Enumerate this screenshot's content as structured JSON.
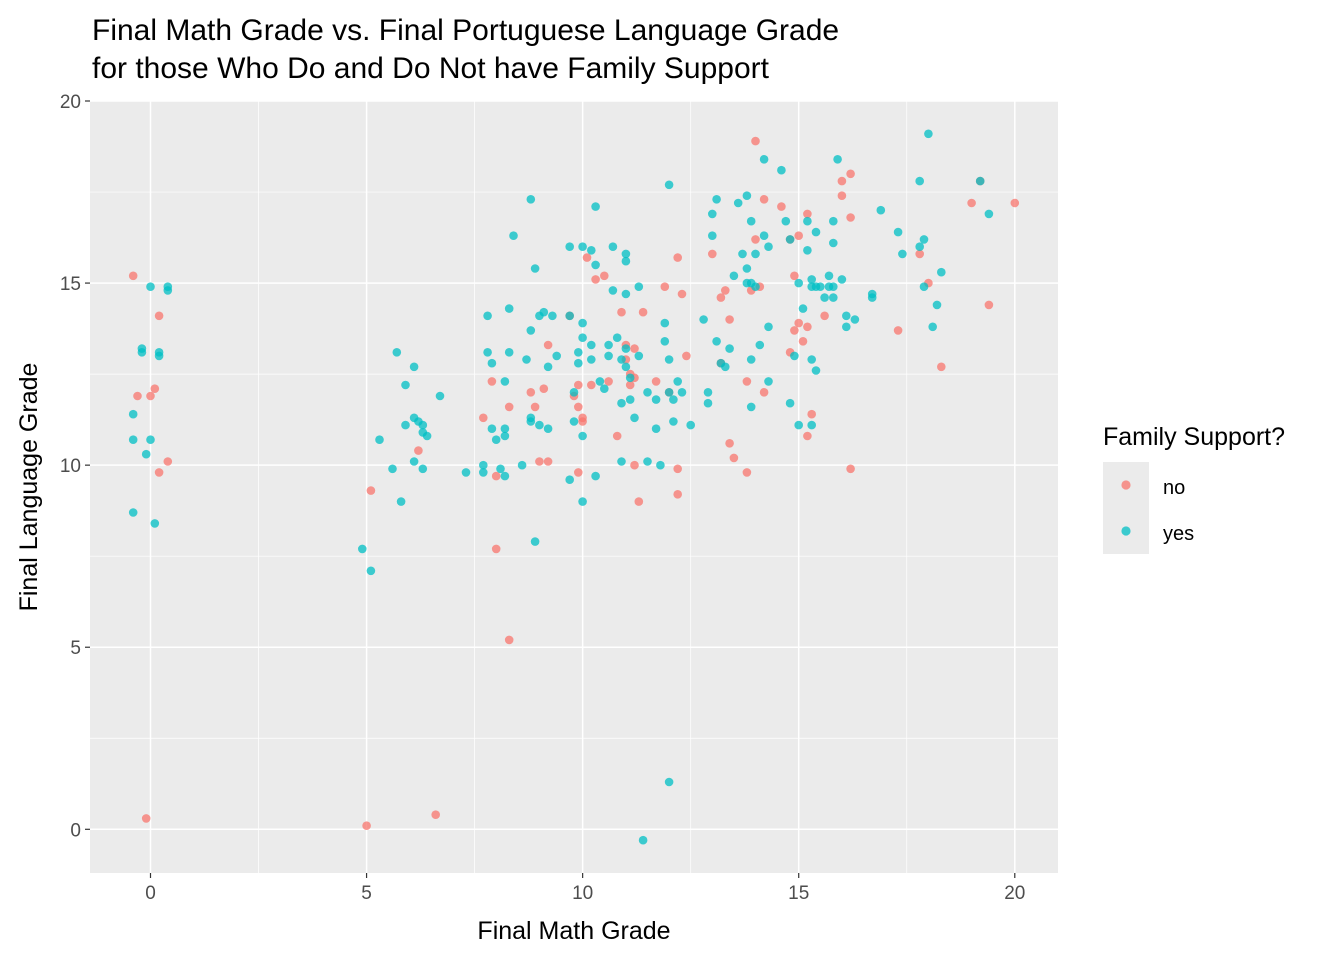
{
  "chart_data": {
    "type": "scatter",
    "title_lines": [
      "Final Math Grade vs. Final Portuguese Language Grade",
      "for those Who Do and Do Not have Family Support"
    ],
    "xlabel": "Final Math Grade",
    "ylabel": "Final Language Grade",
    "xlim": [
      -1.4,
      21.0
    ],
    "ylim": [
      -1.2,
      20.0
    ],
    "x_ticks": [
      0,
      5,
      10,
      15,
      20
    ],
    "y_ticks": [
      0,
      5,
      10,
      15,
      20
    ],
    "x_tick_labels": [
      "0",
      "5",
      "10",
      "15",
      "20"
    ],
    "y_tick_labels": [
      "0",
      "5",
      "10",
      "15",
      "20"
    ],
    "grid": true,
    "legend": {
      "title": "Family Support?",
      "position": "right",
      "entries": [
        {
          "label": "no",
          "color": "#F8766D"
        },
        {
          "label": "yes",
          "color": "#00BFC4"
        }
      ]
    },
    "series": [
      {
        "name": "no",
        "color": "#F8766D",
        "points": [
          [
            -0.4,
            15.2
          ],
          [
            0.2,
            14.1
          ],
          [
            -0.3,
            11.9
          ],
          [
            0.1,
            12.1
          ],
          [
            0.0,
            11.9
          ],
          [
            0.2,
            9.8
          ],
          [
            0.4,
            10.1
          ],
          [
            -0.1,
            0.3
          ],
          [
            5.0,
            0.1
          ],
          [
            6.6,
            0.4
          ],
          [
            5.1,
            9.3
          ],
          [
            6.2,
            10.4
          ],
          [
            7.9,
            12.3
          ],
          [
            8.0,
            9.7
          ],
          [
            7.7,
            11.3
          ],
          [
            8.0,
            7.7
          ],
          [
            8.3,
            11.6
          ],
          [
            8.3,
            5.2
          ],
          [
            8.8,
            12.0
          ],
          [
            8.9,
            11.6
          ],
          [
            9.1,
            12.1
          ],
          [
            9.2,
            13.3
          ],
          [
            9.2,
            10.1
          ],
          [
            9.0,
            10.1
          ],
          [
            9.7,
            14.1
          ],
          [
            9.8,
            11.9
          ],
          [
            9.9,
            11.6
          ],
          [
            10.0,
            11.2
          ],
          [
            10.0,
            11.3
          ],
          [
            9.9,
            12.2
          ],
          [
            9.9,
            9.8
          ],
          [
            10.2,
            12.2
          ],
          [
            10.3,
            15.1
          ],
          [
            10.1,
            15.7
          ],
          [
            10.5,
            15.2
          ],
          [
            10.6,
            12.3
          ],
          [
            10.9,
            14.2
          ],
          [
            10.8,
            10.8
          ],
          [
            11.0,
            12.9
          ],
          [
            11.2,
            12.4
          ],
          [
            11.0,
            13.3
          ],
          [
            11.2,
            13.2
          ],
          [
            11.1,
            12.2
          ],
          [
            11.1,
            12.5
          ],
          [
            11.2,
            10.0
          ],
          [
            11.3,
            9.0
          ],
          [
            11.4,
            14.2
          ],
          [
            11.7,
            12.3
          ],
          [
            11.9,
            14.9
          ],
          [
            12.0,
            12.0
          ],
          [
            12.2,
            9.9
          ],
          [
            12.2,
            9.2
          ],
          [
            12.3,
            14.7
          ],
          [
            12.4,
            13.0
          ],
          [
            12.2,
            15.7
          ],
          [
            13.0,
            15.8
          ],
          [
            13.2,
            14.6
          ],
          [
            13.3,
            14.8
          ],
          [
            13.4,
            14.0
          ],
          [
            13.2,
            12.8
          ],
          [
            13.4,
            10.6
          ],
          [
            13.5,
            10.2
          ],
          [
            13.8,
            9.8
          ],
          [
            13.8,
            12.3
          ],
          [
            13.9,
            14.8
          ],
          [
            14.0,
            16.2
          ],
          [
            14.1,
            14.9
          ],
          [
            14.2,
            12.0
          ],
          [
            14.2,
            17.3
          ],
          [
            14.0,
            18.9
          ],
          [
            14.6,
            17.1
          ],
          [
            14.8,
            16.2
          ],
          [
            14.8,
            13.1
          ],
          [
            14.9,
            13.7
          ],
          [
            15.0,
            13.9
          ],
          [
            14.9,
            15.2
          ],
          [
            15.1,
            13.4
          ],
          [
            15.0,
            16.3
          ],
          [
            15.2,
            10.8
          ],
          [
            15.3,
            11.4
          ],
          [
            15.2,
            13.8
          ],
          [
            15.2,
            16.9
          ],
          [
            15.6,
            14.1
          ],
          [
            16.0,
            17.8
          ],
          [
            16.0,
            17.4
          ],
          [
            16.2,
            16.8
          ],
          [
            16.2,
            18.0
          ],
          [
            16.2,
            9.9
          ],
          [
            17.3,
            13.7
          ],
          [
            17.8,
            15.8
          ],
          [
            18.0,
            15.0
          ],
          [
            18.3,
            12.7
          ],
          [
            19.0,
            17.2
          ],
          [
            19.2,
            17.8
          ],
          [
            19.4,
            14.4
          ],
          [
            20.0,
            17.2
          ]
        ]
      },
      {
        "name": "yes",
        "color": "#00BFC4",
        "points": [
          [
            0.4,
            14.8
          ],
          [
            0.4,
            14.9
          ],
          [
            0.0,
            14.9
          ],
          [
            -0.2,
            13.2
          ],
          [
            -0.2,
            13.1
          ],
          [
            0.2,
            13.1
          ],
          [
            0.2,
            13.0
          ],
          [
            -0.4,
            11.4
          ],
          [
            -0.4,
            10.7
          ],
          [
            -0.1,
            10.3
          ],
          [
            0.0,
            10.7
          ],
          [
            -0.4,
            8.7
          ],
          [
            0.1,
            8.4
          ],
          [
            4.9,
            7.7
          ],
          [
            5.1,
            7.1
          ],
          [
            5.3,
            10.7
          ],
          [
            5.7,
            13.1
          ],
          [
            5.6,
            9.9
          ],
          [
            5.8,
            9.0
          ],
          [
            5.9,
            12.2
          ],
          [
            5.9,
            11.1
          ],
          [
            6.1,
            12.7
          ],
          [
            6.1,
            11.3
          ],
          [
            6.2,
            11.2
          ],
          [
            6.3,
            11.1
          ],
          [
            6.3,
            10.9
          ],
          [
            6.4,
            10.8
          ],
          [
            6.1,
            10.1
          ],
          [
            6.3,
            9.9
          ],
          [
            6.7,
            11.9
          ],
          [
            7.3,
            9.8
          ],
          [
            7.7,
            10.0
          ],
          [
            7.7,
            9.8
          ],
          [
            7.8,
            14.1
          ],
          [
            7.8,
            13.1
          ],
          [
            7.9,
            12.8
          ],
          [
            7.9,
            11.0
          ],
          [
            8.0,
            10.7
          ],
          [
            8.1,
            9.9
          ],
          [
            8.2,
            9.7
          ],
          [
            8.2,
            12.3
          ],
          [
            8.2,
            11.0
          ],
          [
            8.2,
            10.8
          ],
          [
            8.3,
            14.3
          ],
          [
            8.3,
            13.1
          ],
          [
            8.4,
            16.3
          ],
          [
            8.6,
            10.0
          ],
          [
            8.7,
            12.9
          ],
          [
            8.8,
            11.3
          ],
          [
            8.8,
            13.7
          ],
          [
            8.8,
            17.3
          ],
          [
            8.8,
            11.2
          ],
          [
            8.9,
            15.4
          ],
          [
            8.9,
            7.9
          ],
          [
            9.0,
            14.1
          ],
          [
            9.0,
            11.1
          ],
          [
            9.1,
            14.2
          ],
          [
            9.2,
            12.7
          ],
          [
            9.2,
            11.0
          ],
          [
            9.3,
            14.1
          ],
          [
            9.4,
            13.0
          ],
          [
            9.7,
            16.0
          ],
          [
            9.7,
            14.1
          ],
          [
            9.7,
            9.6
          ],
          [
            9.8,
            12.0
          ],
          [
            9.8,
            11.2
          ],
          [
            9.9,
            13.1
          ],
          [
            9.9,
            12.8
          ],
          [
            10.0,
            10.8
          ],
          [
            10.0,
            9.0
          ],
          [
            10.0,
            16.0
          ],
          [
            10.0,
            13.9
          ],
          [
            10.0,
            13.5
          ],
          [
            10.2,
            15.9
          ],
          [
            10.2,
            13.3
          ],
          [
            10.2,
            12.9
          ],
          [
            10.3,
            17.1
          ],
          [
            10.3,
            15.5
          ],
          [
            10.3,
            9.7
          ],
          [
            10.4,
            12.3
          ],
          [
            10.5,
            12.1
          ],
          [
            10.6,
            13.3
          ],
          [
            10.6,
            13.0
          ],
          [
            10.7,
            16.0
          ],
          [
            10.7,
            14.8
          ],
          [
            10.8,
            13.5
          ],
          [
            10.9,
            12.9
          ],
          [
            10.9,
            11.7
          ],
          [
            10.9,
            10.1
          ],
          [
            11.0,
            15.8
          ],
          [
            11.0,
            15.6
          ],
          [
            11.0,
            14.7
          ],
          [
            11.0,
            13.2
          ],
          [
            11.0,
            12.7
          ],
          [
            11.1,
            12.4
          ],
          [
            11.1,
            11.8
          ],
          [
            11.2,
            11.3
          ],
          [
            11.3,
            14.9
          ],
          [
            11.3,
            13.0
          ],
          [
            11.4,
            -0.3
          ],
          [
            11.5,
            12.0
          ],
          [
            11.5,
            10.1
          ],
          [
            11.7,
            11.8
          ],
          [
            11.7,
            11.0
          ],
          [
            11.8,
            10.0
          ],
          [
            11.9,
            13.4
          ],
          [
            11.9,
            13.9
          ],
          [
            12.0,
            17.7
          ],
          [
            12.0,
            12.9
          ],
          [
            12.0,
            12.0
          ],
          [
            12.0,
            1.3
          ],
          [
            12.1,
            11.8
          ],
          [
            12.1,
            11.2
          ],
          [
            12.2,
            12.3
          ],
          [
            12.3,
            12.0
          ],
          [
            12.5,
            11.1
          ],
          [
            12.8,
            14.0
          ],
          [
            12.9,
            11.7
          ],
          [
            12.9,
            12.0
          ],
          [
            13.0,
            16.9
          ],
          [
            13.0,
            16.3
          ],
          [
            13.1,
            17.3
          ],
          [
            13.1,
            13.4
          ],
          [
            13.2,
            12.8
          ],
          [
            13.3,
            12.7
          ],
          [
            13.4,
            13.2
          ],
          [
            13.5,
            15.2
          ],
          [
            13.6,
            17.2
          ],
          [
            13.7,
            15.8
          ],
          [
            13.8,
            15.0
          ],
          [
            13.8,
            17.4
          ],
          [
            13.8,
            15.4
          ],
          [
            13.9,
            16.7
          ],
          [
            13.9,
            15.0
          ],
          [
            13.9,
            12.9
          ],
          [
            13.9,
            11.6
          ],
          [
            14.0,
            15.8
          ],
          [
            14.0,
            14.9
          ],
          [
            14.1,
            13.3
          ],
          [
            14.2,
            18.4
          ],
          [
            14.2,
            16.3
          ],
          [
            14.3,
            16.0
          ],
          [
            14.3,
            13.8
          ],
          [
            14.3,
            12.3
          ],
          [
            14.6,
            18.1
          ],
          [
            14.7,
            16.7
          ],
          [
            14.8,
            16.2
          ],
          [
            14.8,
            11.7
          ],
          [
            14.9,
            13.0
          ],
          [
            15.0,
            15.0
          ],
          [
            15.0,
            11.1
          ],
          [
            15.1,
            14.3
          ],
          [
            15.2,
            16.7
          ],
          [
            15.2,
            15.9
          ],
          [
            15.3,
            15.1
          ],
          [
            15.3,
            14.9
          ],
          [
            15.3,
            12.9
          ],
          [
            15.3,
            11.1
          ],
          [
            15.4,
            12.6
          ],
          [
            15.4,
            16.4
          ],
          [
            15.4,
            14.9
          ],
          [
            15.5,
            14.9
          ],
          [
            15.6,
            14.6
          ],
          [
            15.7,
            15.2
          ],
          [
            15.7,
            14.9
          ],
          [
            15.8,
            16.7
          ],
          [
            15.8,
            16.1
          ],
          [
            15.8,
            14.9
          ],
          [
            15.8,
            14.6
          ],
          [
            15.9,
            18.4
          ],
          [
            16.0,
            15.1
          ],
          [
            16.1,
            14.1
          ],
          [
            16.1,
            13.8
          ],
          [
            16.3,
            14.0
          ],
          [
            16.7,
            14.7
          ],
          [
            16.7,
            14.6
          ],
          [
            16.9,
            17.0
          ],
          [
            17.3,
            16.4
          ],
          [
            17.4,
            15.8
          ],
          [
            17.8,
            17.8
          ],
          [
            17.8,
            16.0
          ],
          [
            17.9,
            16.2
          ],
          [
            17.9,
            14.9
          ],
          [
            18.0,
            19.1
          ],
          [
            18.1,
            13.8
          ],
          [
            18.2,
            14.4
          ],
          [
            18.3,
            15.3
          ],
          [
            19.2,
            17.8
          ],
          [
            19.4,
            16.9
          ]
        ]
      }
    ]
  }
}
